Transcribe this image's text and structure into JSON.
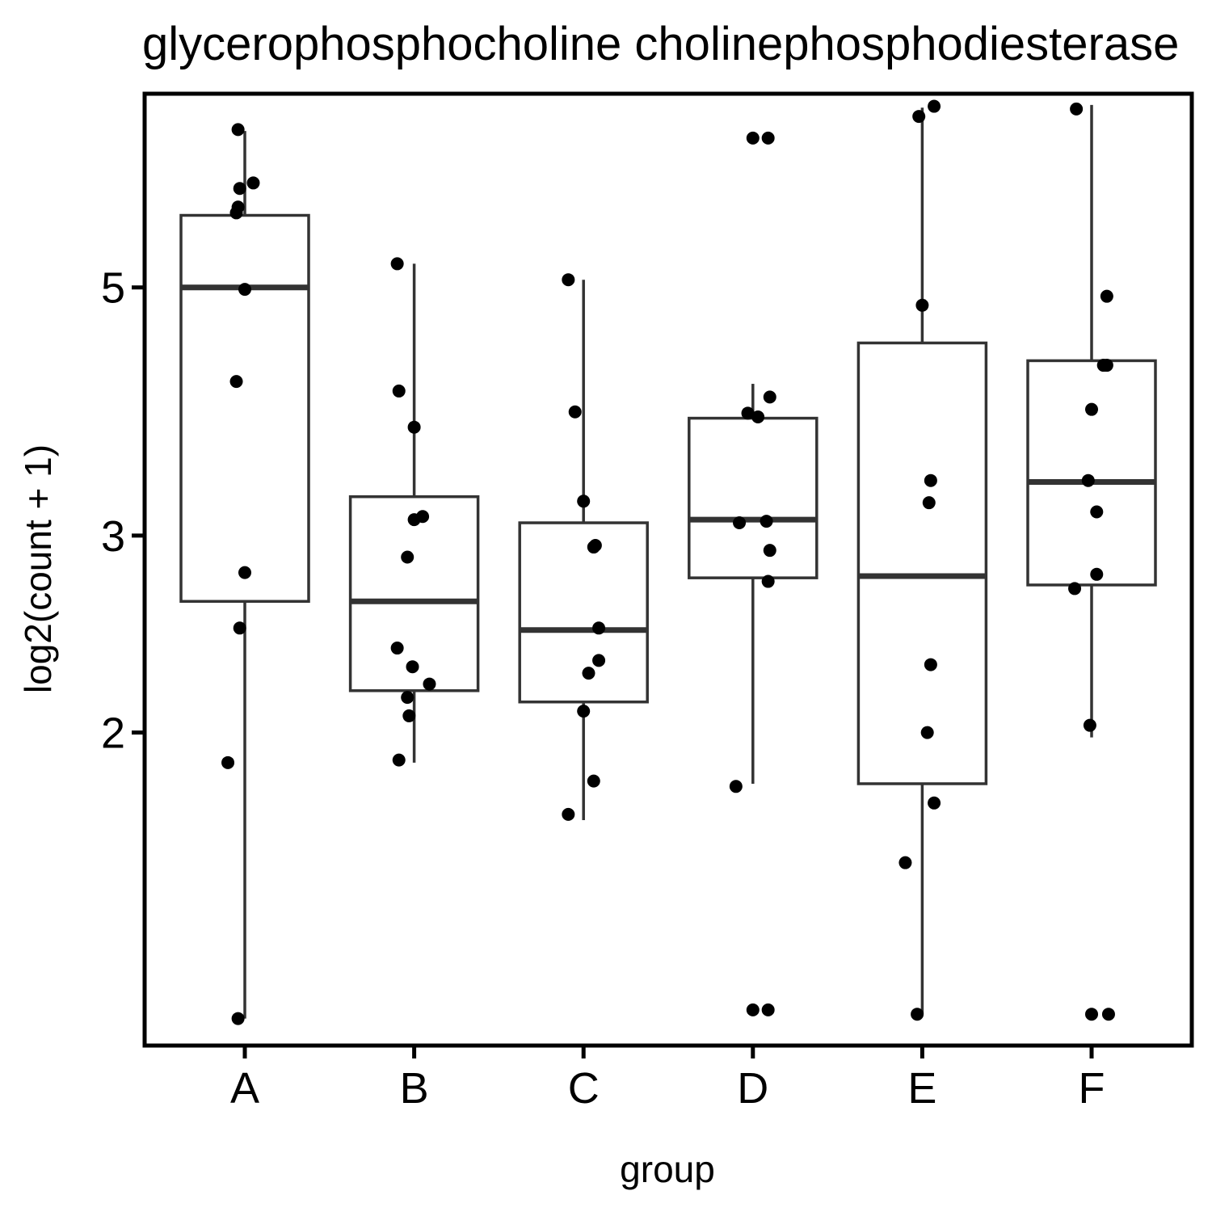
{
  "chart_data": {
    "type": "boxplot",
    "title": "glycerophosphocholine cholinephosphodiesterase",
    "xlabel": "group",
    "ylabel": "log2(count + 1)",
    "y_scale": "log",
    "ylim": [
      1.05,
      7.45
    ],
    "yticks": [
      2,
      3,
      5
    ],
    "ytick_labels": [
      "2",
      "3",
      "5"
    ],
    "categories": [
      "A",
      "B",
      "C",
      "D",
      "E",
      "F"
    ],
    "colors": {
      "box_stroke": "#333333",
      "point": "#000000",
      "frame": "#000000",
      "background": "#ffffff"
    },
    "boxes": [
      {
        "group": "A",
        "q1": 2.62,
        "median": 5.0,
        "q3": 5.8,
        "whisker_low": 1.11,
        "whisker_high": 6.9
      },
      {
        "group": "B",
        "q1": 2.18,
        "median": 2.62,
        "q3": 3.25,
        "whisker_low": 1.88,
        "whisker_high": 5.25
      },
      {
        "group": "C",
        "q1": 2.13,
        "median": 2.47,
        "q3": 3.08,
        "whisker_low": 1.67,
        "whisker_high": 5.08
      },
      {
        "group": "D",
        "q1": 2.75,
        "median": 3.1,
        "q3": 3.82,
        "whisker_low": 1.8,
        "whisker_high": 4.1
      },
      {
        "group": "E",
        "q1": 1.8,
        "median": 2.76,
        "q3": 4.46,
        "whisker_low": 1.12,
        "whisker_high": 7.24
      },
      {
        "group": "F",
        "q1": 2.71,
        "median": 3.35,
        "q3": 4.3,
        "whisker_low": 1.98,
        "whisker_high": 7.28
      }
    ],
    "points": [
      {
        "group": "A",
        "jitter": -0.04,
        "value": 6.92
      },
      {
        "group": "A",
        "jitter": 0.05,
        "value": 6.2
      },
      {
        "group": "A",
        "jitter": -0.03,
        "value": 6.13
      },
      {
        "group": "A",
        "jitter": -0.04,
        "value": 5.9
      },
      {
        "group": "A",
        "jitter": -0.05,
        "value": 5.83
      },
      {
        "group": "A",
        "jitter": 0.0,
        "value": 4.98
      },
      {
        "group": "A",
        "jitter": -0.05,
        "value": 4.12
      },
      {
        "group": "A",
        "jitter": 0.0,
        "value": 2.78
      },
      {
        "group": "A",
        "jitter": -0.03,
        "value": 2.48
      },
      {
        "group": "A",
        "jitter": -0.1,
        "value": 1.88
      },
      {
        "group": "A",
        "jitter": -0.04,
        "value": 1.11
      },
      {
        "group": "B",
        "jitter": -0.1,
        "value": 5.25
      },
      {
        "group": "B",
        "jitter": -0.09,
        "value": 4.04
      },
      {
        "group": "B",
        "jitter": 0.0,
        "value": 3.75
      },
      {
        "group": "B",
        "jitter": 0.05,
        "value": 3.12
      },
      {
        "group": "B",
        "jitter": 0.0,
        "value": 3.1
      },
      {
        "group": "B",
        "jitter": -0.04,
        "value": 2.87
      },
      {
        "group": "B",
        "jitter": -0.1,
        "value": 2.38
      },
      {
        "group": "B",
        "jitter": -0.01,
        "value": 2.29
      },
      {
        "group": "B",
        "jitter": 0.09,
        "value": 2.21
      },
      {
        "group": "B",
        "jitter": -0.04,
        "value": 2.15
      },
      {
        "group": "B",
        "jitter": -0.03,
        "value": 2.07
      },
      {
        "group": "B",
        "jitter": -0.09,
        "value": 1.89
      },
      {
        "group": "C",
        "jitter": -0.09,
        "value": 5.08
      },
      {
        "group": "C",
        "jitter": -0.05,
        "value": 3.87
      },
      {
        "group": "C",
        "jitter": 0.0,
        "value": 3.22
      },
      {
        "group": "C",
        "jitter": 0.07,
        "value": 2.94
      },
      {
        "group": "C",
        "jitter": 0.06,
        "value": 2.93
      },
      {
        "group": "C",
        "jitter": 0.09,
        "value": 2.48
      },
      {
        "group": "C",
        "jitter": 0.09,
        "value": 2.32
      },
      {
        "group": "C",
        "jitter": 0.03,
        "value": 2.26
      },
      {
        "group": "C",
        "jitter": 0.0,
        "value": 2.09
      },
      {
        "group": "C",
        "jitter": 0.06,
        "value": 1.81
      },
      {
        "group": "C",
        "jitter": -0.09,
        "value": 1.69
      },
      {
        "group": "D",
        "jitter": 0.0,
        "value": 6.8
      },
      {
        "group": "D",
        "jitter": 0.09,
        "value": 6.8
      },
      {
        "group": "D",
        "jitter": 0.1,
        "value": 3.99
      },
      {
        "group": "D",
        "jitter": -0.03,
        "value": 3.86
      },
      {
        "group": "D",
        "jitter": 0.03,
        "value": 3.83
      },
      {
        "group": "D",
        "jitter": -0.08,
        "value": 3.08
      },
      {
        "group": "D",
        "jitter": 0.08,
        "value": 3.09
      },
      {
        "group": "D",
        "jitter": 0.1,
        "value": 2.91
      },
      {
        "group": "D",
        "jitter": 0.09,
        "value": 2.73
      },
      {
        "group": "D",
        "jitter": -0.1,
        "value": 1.79
      },
      {
        "group": "D",
        "jitter": 0.0,
        "value": 1.13
      },
      {
        "group": "D",
        "jitter": 0.09,
        "value": 1.13
      },
      {
        "group": "E",
        "jitter": -0.02,
        "value": 7.11
      },
      {
        "group": "E",
        "jitter": 0.07,
        "value": 7.26
      },
      {
        "group": "E",
        "jitter": 0.0,
        "value": 4.82
      },
      {
        "group": "E",
        "jitter": 0.05,
        "value": 3.36
      },
      {
        "group": "E",
        "jitter": 0.04,
        "value": 3.21
      },
      {
        "group": "E",
        "jitter": 0.05,
        "value": 2.3
      },
      {
        "group": "E",
        "jitter": 0.03,
        "value": 2.0
      },
      {
        "group": "E",
        "jitter": 0.07,
        "value": 1.73
      },
      {
        "group": "E",
        "jitter": -0.1,
        "value": 1.53
      },
      {
        "group": "E",
        "jitter": -0.03,
        "value": 1.12
      },
      {
        "group": "F",
        "jitter": -0.09,
        "value": 7.22
      },
      {
        "group": "F",
        "jitter": 0.09,
        "value": 4.91
      },
      {
        "group": "F",
        "jitter": 0.07,
        "value": 4.26
      },
      {
        "group": "F",
        "jitter": 0.09,
        "value": 4.26
      },
      {
        "group": "F",
        "jitter": 0.0,
        "value": 3.89
      },
      {
        "group": "F",
        "jitter": -0.02,
        "value": 3.36
      },
      {
        "group": "F",
        "jitter": 0.03,
        "value": 3.15
      },
      {
        "group": "F",
        "jitter": 0.03,
        "value": 2.77
      },
      {
        "group": "F",
        "jitter": -0.1,
        "value": 2.69
      },
      {
        "group": "F",
        "jitter": -0.01,
        "value": 2.03
      },
      {
        "group": "F",
        "jitter": 0.0,
        "value": 1.12
      },
      {
        "group": "F",
        "jitter": 0.1,
        "value": 1.12
      }
    ]
  }
}
